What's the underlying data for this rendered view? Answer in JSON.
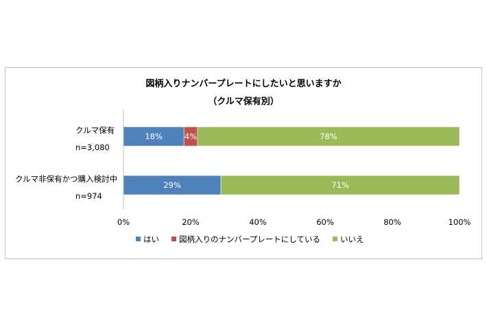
{
  "chart_data": {
    "type": "bar",
    "orientation": "horizontal",
    "stacked": true,
    "title": "図柄入りナンバープレートにしたいと思いますか",
    "subtitle": "（クルマ保有別）",
    "categories": [
      {
        "name": "クルマ保有",
        "n": "n=3,080"
      },
      {
        "name": "クルマ非保有かつ購入検討中",
        "n": "n=974"
      }
    ],
    "series": [
      {
        "name": "はい",
        "color": "#4f81bd",
        "values": [
          18,
          29
        ],
        "labels": [
          "18%",
          "29%"
        ]
      },
      {
        "name": "図柄入りのナンバープレートにしている",
        "color": "#c0504d",
        "values": [
          4,
          0
        ],
        "labels": [
          "4%",
          ""
        ]
      },
      {
        "name": "いいえ",
        "color": "#9bbb59",
        "values": [
          78,
          71
        ],
        "labels": [
          "78%",
          "71%"
        ]
      }
    ],
    "xlim": [
      0,
      100
    ],
    "xticks": [
      "0%",
      "20%",
      "40%",
      "60%",
      "80%",
      "100%"
    ],
    "grid": false,
    "legend": "bottom"
  }
}
